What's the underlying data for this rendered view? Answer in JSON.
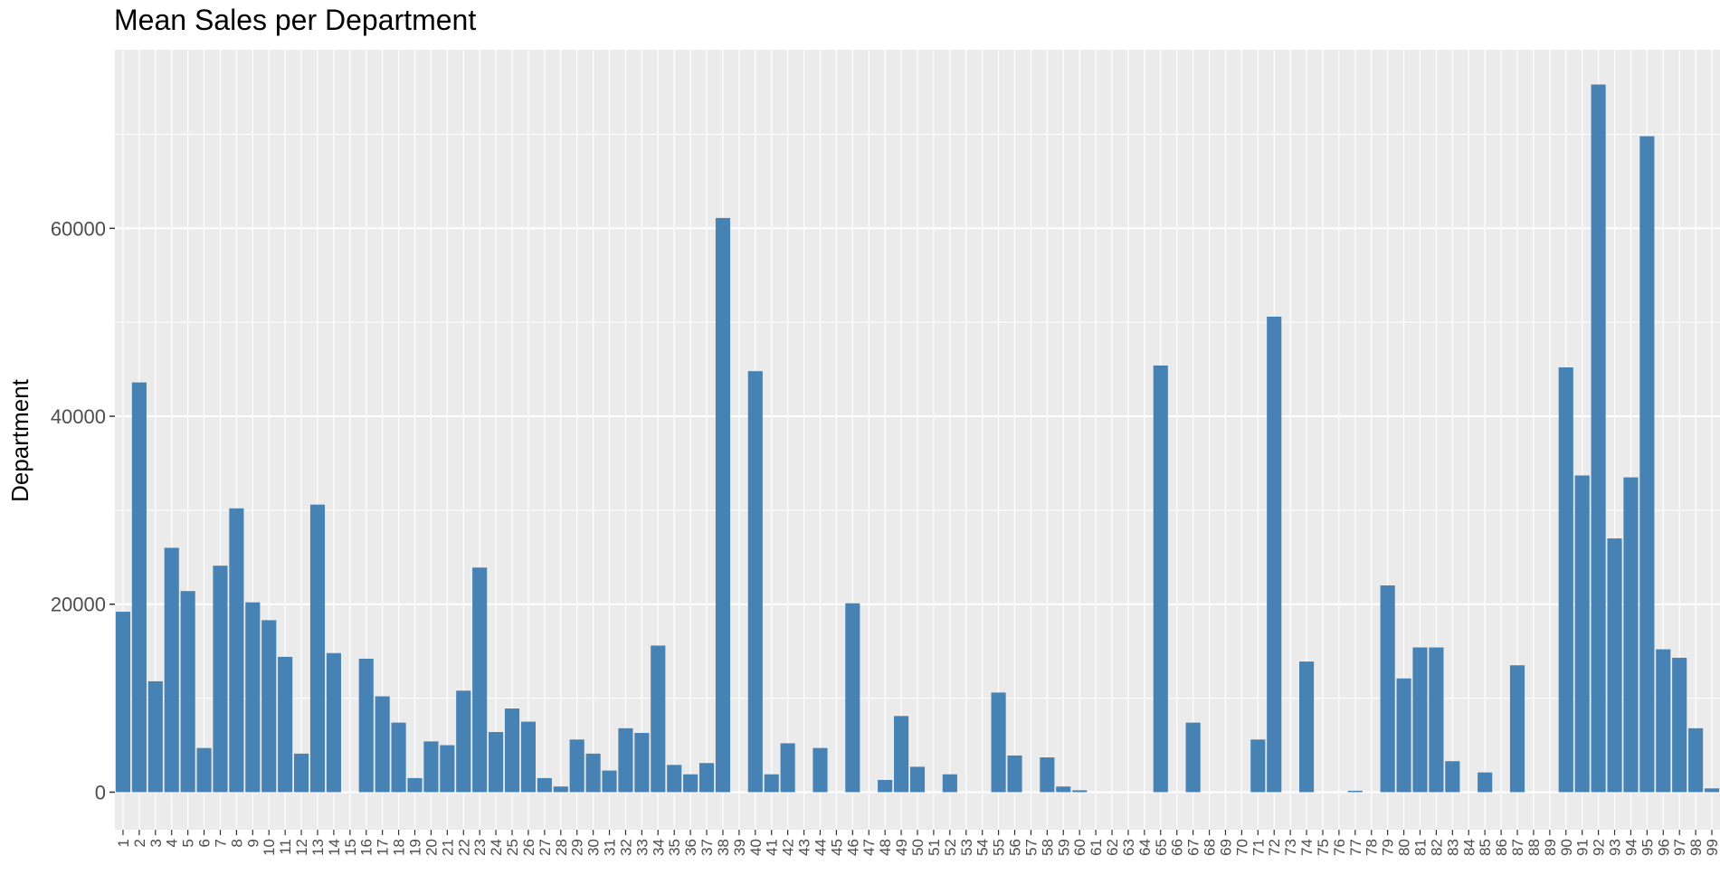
{
  "chart_data": {
    "type": "bar",
    "title": "Mean Sales per Department",
    "xlabel": "",
    "ylabel": "Department",
    "bar_color": "#4682B4",
    "panel_color": "#EBEBEB",
    "grid_color": "#FFFFFF",
    "ylim": [
      -4000,
      79000
    ],
    "yticks": [
      0,
      20000,
      40000,
      60000
    ],
    "categories": [
      "1",
      "2",
      "3",
      "4",
      "5",
      "6",
      "7",
      "8",
      "9",
      "10",
      "11",
      "12",
      "13",
      "14",
      "15",
      "16",
      "17",
      "18",
      "19",
      "20",
      "21",
      "22",
      "23",
      "24",
      "25",
      "26",
      "27",
      "28",
      "29",
      "30",
      "31",
      "32",
      "33",
      "34",
      "35",
      "36",
      "37",
      "38",
      "39",
      "40",
      "41",
      "42",
      "43",
      "44",
      "45",
      "46",
      "47",
      "48",
      "49",
      "50",
      "51",
      "52",
      "53",
      "54",
      "55",
      "56",
      "57",
      "58",
      "59",
      "60",
      "61",
      "62",
      "63",
      "64",
      "65",
      "66",
      "67",
      "68",
      "69",
      "70",
      "71",
      "72",
      "73",
      "74",
      "75",
      "76",
      "77",
      "78",
      "79",
      "80",
      "81",
      "82",
      "83",
      "84",
      "85",
      "86",
      "87",
      "88",
      "89",
      "90",
      "91",
      "92",
      "93",
      "94",
      "95",
      "96",
      "97",
      "98",
      "99"
    ],
    "values": [
      19200,
      43600,
      11800,
      26000,
      21400,
      4700,
      24100,
      30200,
      20200,
      18300,
      14400,
      4100,
      30600,
      14800,
      0,
      14200,
      10200,
      7400,
      1500,
      5400,
      5000,
      10800,
      23900,
      6400,
      8900,
      7500,
      1500,
      600,
      5600,
      4100,
      2300,
      6800,
      6300,
      15600,
      2900,
      1900,
      3100,
      61100,
      0,
      44800,
      1900,
      5200,
      0,
      4700,
      0,
      20100,
      0,
      1300,
      8100,
      2700,
      0,
      1900,
      0,
      0,
      10600,
      3900,
      0,
      3700,
      600,
      200,
      0,
      0,
      0,
      0,
      45400,
      0,
      7400,
      0,
      0,
      0,
      5600,
      50600,
      0,
      13900,
      0,
      0,
      150,
      0,
      22000,
      12100,
      15400,
      15400,
      3300,
      0,
      2100,
      0,
      13500,
      0,
      0,
      45200,
      33700,
      75300,
      27000,
      33500,
      69800,
      15200,
      14300,
      6800,
      400
    ]
  }
}
